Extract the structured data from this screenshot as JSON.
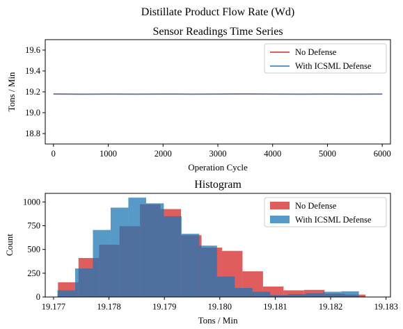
{
  "figure": {
    "suptitle": "Distillate Product Flow Rate (Wd)"
  },
  "colors": {
    "no_defense": "#d62728",
    "with_defense": "#1f77b4"
  },
  "chart_data": [
    {
      "type": "line",
      "title": "Sensor Readings Time Series",
      "xlabel": "Operation Cycle",
      "ylabel": "Tons / Min",
      "xlim": [
        -150,
        6150
      ],
      "ylim": [
        18.7,
        19.7
      ],
      "xticks": [
        0,
        1000,
        2000,
        3000,
        4000,
        5000,
        6000
      ],
      "yticks": [
        18.8,
        19.0,
        19.2,
        19.4,
        19.6
      ],
      "ytick_labels": [
        "18.8",
        "19.0",
        "19.2",
        "19.4",
        "19.6"
      ],
      "grid": false,
      "legend_position": "upper right",
      "series": [
        {
          "name": "No Defense",
          "x": [
            0,
            500,
            1000,
            1500,
            2000,
            2500,
            3000,
            3500,
            4000,
            4500,
            5000,
            5500,
            6000
          ],
          "y": [
            19.18,
            19.178,
            19.179,
            19.178,
            19.179,
            19.178,
            19.179,
            19.18,
            19.179,
            19.178,
            19.179,
            19.178,
            19.179
          ]
        },
        {
          "name": "With ICSML Defense",
          "x": [
            0,
            500,
            1000,
            1500,
            2000,
            2500,
            3000,
            3500,
            4000,
            4500,
            5000,
            5500,
            6000
          ],
          "y": [
            19.178,
            19.177,
            19.178,
            19.178,
            19.178,
            19.178,
            19.178,
            19.179,
            19.178,
            19.178,
            19.178,
            19.178,
            19.178
          ]
        }
      ]
    },
    {
      "type": "bar",
      "title": "Histogram",
      "xlabel": "Tons / Min",
      "ylabel": "Count",
      "xlim": [
        19.17685,
        19.18308
      ],
      "ylim": [
        0,
        1090
      ],
      "xticks": [
        19.177,
        19.178,
        19.179,
        19.18,
        19.181,
        19.182,
        19.183
      ],
      "xtick_labels": [
        "19.177",
        "19.178",
        "19.179",
        "19.180",
        "19.181",
        "19.182",
        "19.183"
      ],
      "yticks": [
        0,
        250,
        500,
        750,
        1000
      ],
      "grid": false,
      "legend_position": "upper right",
      "series": [
        {
          "name": "No Defense",
          "bin_edges": [
            19.17708,
            19.17745,
            19.17782,
            19.17819,
            19.17856,
            19.17893,
            19.1793,
            19.17967,
            19.18004,
            19.18041,
            19.18078,
            19.18115,
            19.18152,
            19.18189,
            19.18226,
            19.18263
          ],
          "counts": [
            155,
            410,
            550,
            745,
            975,
            925,
            650,
            520,
            485,
            270,
            110,
            70,
            75,
            35,
            25
          ]
        },
        {
          "name": "With ICSML Defense",
          "bin_edges": [
            19.17707,
            19.17739,
            19.17771,
            19.17803,
            19.17835,
            19.17867,
            19.17899,
            19.17931,
            19.17963,
            19.17995,
            19.18027,
            19.18059,
            19.18091,
            19.18123,
            19.18155,
            19.18187,
            19.18219,
            19.18251
          ],
          "counts": [
            70,
            300,
            705,
            940,
            1045,
            985,
            850,
            665,
            540,
            215,
            95,
            55,
            20,
            30,
            40,
            55,
            60
          ]
        }
      ]
    }
  ]
}
